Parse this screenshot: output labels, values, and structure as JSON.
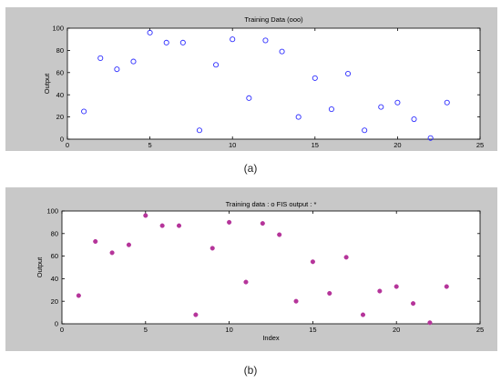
{
  "chart_data": [
    {
      "type": "scatter",
      "title": "Training Data (ooo)",
      "xlabel": "",
      "ylabel": "Output",
      "xlim": [
        0,
        25
      ],
      "ylim": [
        0,
        100
      ],
      "xticks": [
        0,
        5,
        10,
        15,
        20,
        25
      ],
      "yticks": [
        0,
        20,
        40,
        60,
        80,
        100
      ],
      "grid": false,
      "marker": "open-circle",
      "color": "#2f2fff",
      "series": [
        {
          "x": [
            1,
            2,
            3,
            4,
            5,
            6,
            7,
            8,
            9,
            10,
            11,
            12,
            13,
            14,
            15,
            16,
            17,
            18,
            19,
            20,
            21,
            22,
            23
          ],
          "y": [
            25,
            73,
            63,
            70,
            96,
            87,
            87,
            8,
            67,
            90,
            37,
            89,
            79,
            20,
            55,
            27,
            59,
            8,
            29,
            33,
            18,
            1,
            33
          ]
        }
      ]
    },
    {
      "type": "scatter",
      "title": "Training data : o    FIS output : *",
      "xlabel": "Index",
      "ylabel": "Output",
      "xlim": [
        0,
        25
      ],
      "ylim": [
        0,
        100
      ],
      "xticks": [
        0,
        5,
        10,
        15,
        20,
        25
      ],
      "yticks": [
        0,
        20,
        40,
        60,
        80,
        100
      ],
      "grid": false,
      "marker": "filled-circle",
      "color": "#b5349a",
      "series": [
        {
          "x": [
            1,
            2,
            3,
            4,
            5,
            6,
            7,
            8,
            9,
            10,
            11,
            12,
            13,
            14,
            15,
            16,
            17,
            18,
            19,
            20,
            21,
            22,
            23
          ],
          "y": [
            25,
            73,
            63,
            70,
            96,
            87,
            87,
            8,
            67,
            90,
            37,
            89,
            79,
            20,
            55,
            27,
            59,
            8,
            29,
            33,
            18,
            1,
            33
          ]
        }
      ]
    }
  ],
  "captions": [
    "(a)",
    "(b)"
  ]
}
